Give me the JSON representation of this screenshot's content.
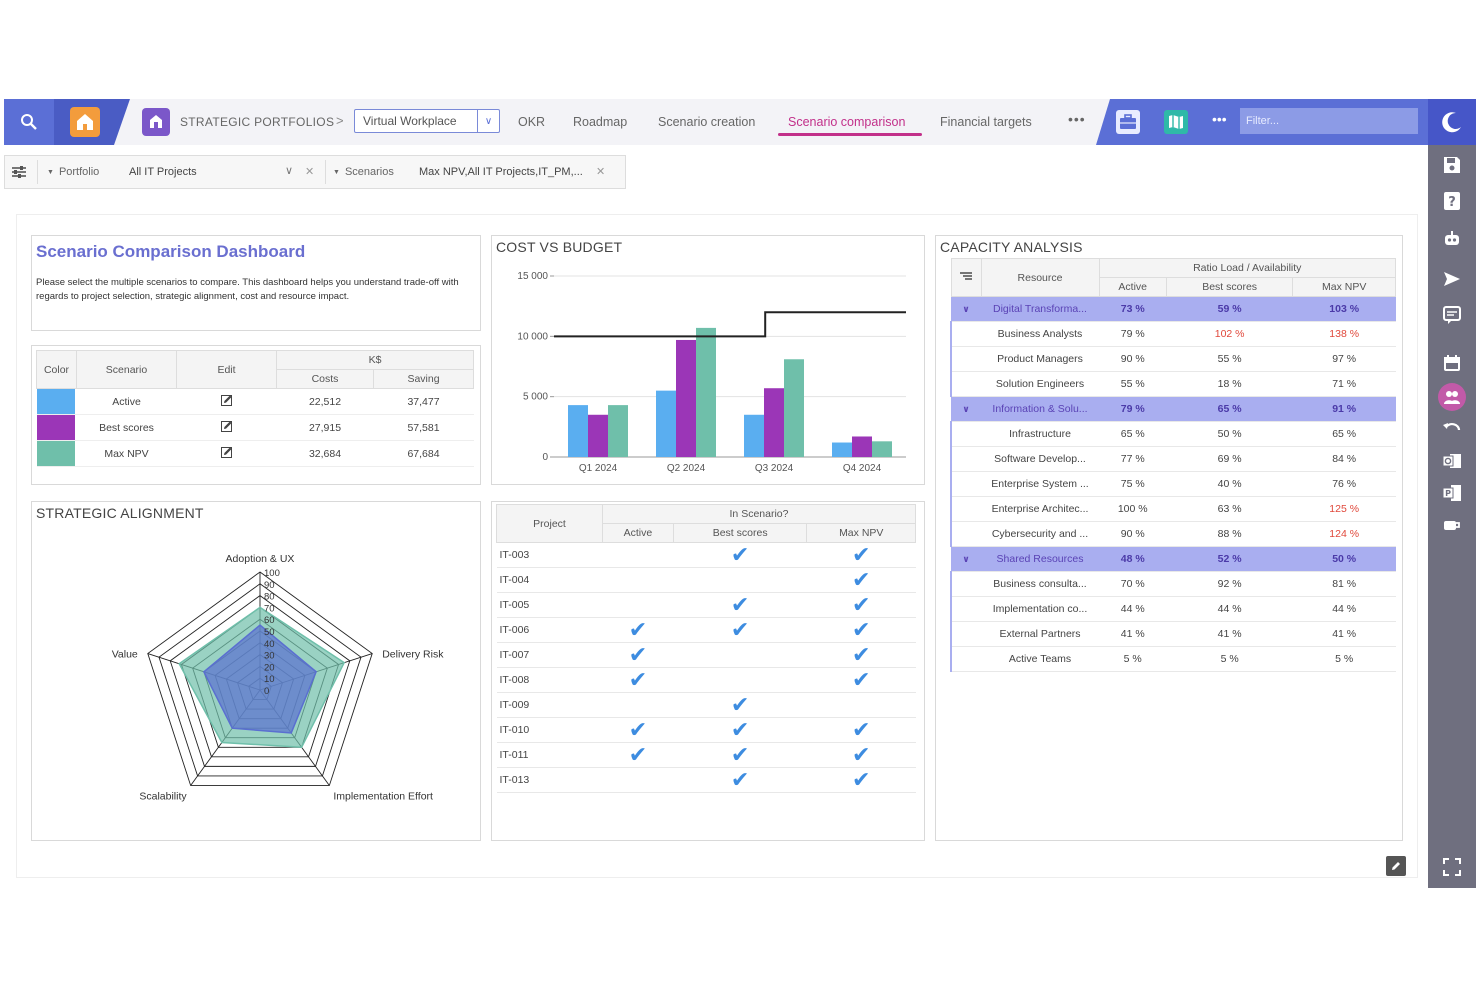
{
  "nav": {
    "breadcrumb": "STRATEGIC PORTFOLIOS",
    "breadcrumb_sep": ">",
    "workspace": "Virtual Workplace",
    "tabs": [
      {
        "label": "OKR"
      },
      {
        "label": "Roadmap"
      },
      {
        "label": "Scenario creation"
      },
      {
        "label": "Scenario comparison"
      },
      {
        "label": "Financial targets"
      }
    ],
    "more": "•••",
    "more2": "•••",
    "filter_placeholder": "Filter..."
  },
  "filters": {
    "portfolio_label": "Portfolio",
    "portfolio_value": "All IT Projects",
    "scenarios_label": "Scenarios",
    "scenarios_value": "Max NPV,All IT Projects,IT_PM,..."
  },
  "dashboard": {
    "title": "Scenario Comparison Dashboard",
    "description": "Please select the multiple scenarios to compare. This dashboard helps you understand trade-off with regards to project selection, strategic alignment, cost and resource impact."
  },
  "ks_table": {
    "headers": {
      "color": "Color",
      "scenario": "Scenario",
      "edit": "Edit",
      "group": "K$",
      "costs": "Costs",
      "saving": "Saving"
    },
    "rows": [
      {
        "name": "Active",
        "color": "#5aaef0",
        "costs": "22,512",
        "saving": "37,477"
      },
      {
        "name": "Best scores",
        "color": "#9b36b7",
        "costs": "27,915",
        "saving": "57,581"
      },
      {
        "name": "Max NPV",
        "color": "#6fbfaa",
        "costs": "32,684",
        "saving": "67,684"
      }
    ]
  },
  "cost_chart": {
    "title": "COST VS BUDGET",
    "chart_data": {
      "type": "bar",
      "categories": [
        "Q1 2024",
        "Q2 2024",
        "Q3 2024",
        "Q4 2024"
      ],
      "series": [
        {
          "name": "Active",
          "color": "#5aaef0",
          "values": [
            4300,
            5500,
            3500,
            1200
          ]
        },
        {
          "name": "Best scores",
          "color": "#9b36b7",
          "values": [
            3500,
            9700,
            5700,
            1700
          ]
        },
        {
          "name": "Max NPV",
          "color": "#6fbfaa",
          "values": [
            4300,
            10700,
            8100,
            1300
          ]
        }
      ],
      "budget_line": [
        [
          0,
          10000
        ],
        [
          0.6,
          10000
        ],
        [
          0.6,
          12000
        ],
        [
          1,
          12000
        ]
      ],
      "yticks": [
        "0",
        "5 000",
        "10 000",
        "15 000"
      ],
      "ylim": [
        0,
        15000
      ]
    }
  },
  "strategic": {
    "title": "STRATEGIC ALIGNMENT",
    "chart_data": {
      "type": "radar",
      "axes": [
        "Adoption & UX",
        "Delivery Risk",
        "Implementation Effort",
        "Scalability",
        "Value"
      ],
      "rings": [
        "0",
        "10",
        "20",
        "30",
        "40",
        "50",
        "60",
        "70",
        "80",
        "90",
        "100"
      ],
      "series": [
        {
          "color": "#6fbfaa",
          "values": [
            70,
            75,
            60,
            55,
            72
          ]
        },
        {
          "color": "#5a6fd0",
          "values": [
            55,
            50,
            45,
            40,
            50
          ]
        }
      ]
    }
  },
  "projects": {
    "headers": {
      "project": "Project",
      "group": "In Scenario?",
      "active": "Active",
      "best": "Best scores",
      "max": "Max NPV"
    },
    "check": "✔",
    "rows": [
      {
        "id": "IT-003",
        "a": false,
        "b": true,
        "c": true
      },
      {
        "id": "IT-004",
        "a": false,
        "b": false,
        "c": true
      },
      {
        "id": "IT-005",
        "a": false,
        "b": true,
        "c": true
      },
      {
        "id": "IT-006",
        "a": true,
        "b": true,
        "c": true
      },
      {
        "id": "IT-007",
        "a": true,
        "b": false,
        "c": true
      },
      {
        "id": "IT-008",
        "a": true,
        "b": false,
        "c": true
      },
      {
        "id": "IT-009",
        "a": false,
        "b": true,
        "c": false
      },
      {
        "id": "IT-010",
        "a": true,
        "b": true,
        "c": true
      },
      {
        "id": "IT-011",
        "a": true,
        "b": true,
        "c": true
      },
      {
        "id": "IT-013",
        "a": false,
        "b": true,
        "c": true
      }
    ]
  },
  "capacity": {
    "title": "CAPACITY ANALYSIS",
    "headers": {
      "resource": "Resource",
      "group": "Ratio Load / Availability",
      "active": "Active",
      "best": "Best scores",
      "max": "Max NPV"
    },
    "rows": [
      {
        "name": "Digital Transforma...",
        "group": true,
        "a": "73 %",
        "b": "59 %",
        "c": "103 %",
        "cred": true
      },
      {
        "name": "Business Analysts",
        "a": "79 %",
        "b": "102 %",
        "c": "138 %",
        "bred": true,
        "cred": true
      },
      {
        "name": "Product Managers",
        "a": "90 %",
        "b": "55 %",
        "c": "97 %"
      },
      {
        "name": "Solution Engineers",
        "a": "55 %",
        "b": "18 %",
        "c": "71 %"
      },
      {
        "name": "Information & Solu...",
        "group": true,
        "a": "79 %",
        "b": "65 %",
        "c": "91 %"
      },
      {
        "name": "Infrastructure",
        "a": "65 %",
        "b": "50 %",
        "c": "65 %"
      },
      {
        "name": "Software Develop...",
        "a": "77 %",
        "b": "69 %",
        "c": "84 %"
      },
      {
        "name": "Enterprise System ...",
        "a": "75 %",
        "b": "40 %",
        "c": "76 %"
      },
      {
        "name": "Enterprise Architec...",
        "a": "100 %",
        "b": "63 %",
        "c": "125 %",
        "cred": true
      },
      {
        "name": "Cybersecurity and ...",
        "a": "90 %",
        "b": "88 %",
        "c": "124 %",
        "cred": true
      },
      {
        "name": "Shared Resources",
        "group": true,
        "a": "48 %",
        "b": "52 %",
        "c": "50 %"
      },
      {
        "name": "Business consulta...",
        "a": "70 %",
        "b": "92 %",
        "c": "81 %"
      },
      {
        "name": "Implementation co...",
        "a": "44 %",
        "b": "44 %",
        "c": "44 %"
      },
      {
        "name": "External Partners",
        "a": "41 %",
        "b": "41 %",
        "c": "41 %"
      },
      {
        "name": "Active Teams",
        "a": "5 %",
        "b": "5 %",
        "c": "5 %"
      }
    ]
  }
}
